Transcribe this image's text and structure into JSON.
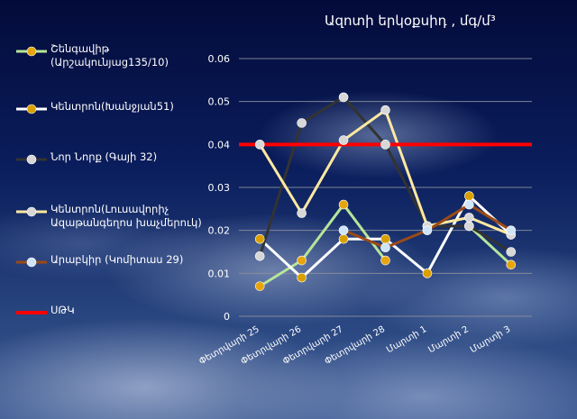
{
  "chart_data": {
    "type": "line",
    "title": "Ազոտի երկօքսիդ , մգ/մ³",
    "categories": [
      "Փետրվարի 25",
      "Փետրվարի 26",
      "Փետրվարի 27",
      "Փետրվարի 28",
      "Մարտի 1",
      "Մարտի 2",
      "Մարտի 3"
    ],
    "ylim": [
      0,
      0.06
    ],
    "yticks": [
      "0",
      "0.01",
      "0.02",
      "0.03",
      "0.04",
      "0.05",
      "0.06"
    ],
    "grid": "horizontal",
    "legend_position": "left",
    "series": [
      {
        "name": "Շենգավիթ (Արշակունյաց135/10)",
        "color": "#b7e59a",
        "marker_color": "#e6a50f",
        "values": [
          0.007,
          0.013,
          0.026,
          0.013,
          null,
          0.021,
          0.012
        ]
      },
      {
        "name": "Կենտրոն(Խանջյան51)",
        "color": "#ffffff",
        "marker_color": "#d9a000",
        "values": [
          0.018,
          0.009,
          0.018,
          0.018,
          0.01,
          0.028,
          0.019
        ]
      },
      {
        "name": "Նոր Նորք (Գայի 32)",
        "color": "#333333",
        "marker_color": "#d7d7d7",
        "values": [
          0.014,
          0.045,
          0.051,
          0.04,
          0.021,
          0.021,
          0.015
        ]
      },
      {
        "name": "Կենտրոն(Լուսավորիչ Ազաթանգեղոս խաչմերուկ)",
        "color": "#ffe9a0",
        "marker_color": "#d7d7d7",
        "values": [
          0.04,
          0.024,
          0.041,
          0.048,
          0.021,
          0.023,
          0.019
        ]
      },
      {
        "name": "Արաբկիր (Կոմիտաս 29)",
        "color": "#9a4a17",
        "marker_color": "#cfe4f7",
        "values": [
          null,
          null,
          0.02,
          0.016,
          0.02,
          0.026,
          0.02
        ]
      },
      {
        "name": "ՍԹԿ",
        "color": "#ff0000",
        "values": [
          0.04,
          0.04,
          0.04,
          0.04,
          0.04,
          0.04,
          0.04
        ]
      }
    ]
  }
}
